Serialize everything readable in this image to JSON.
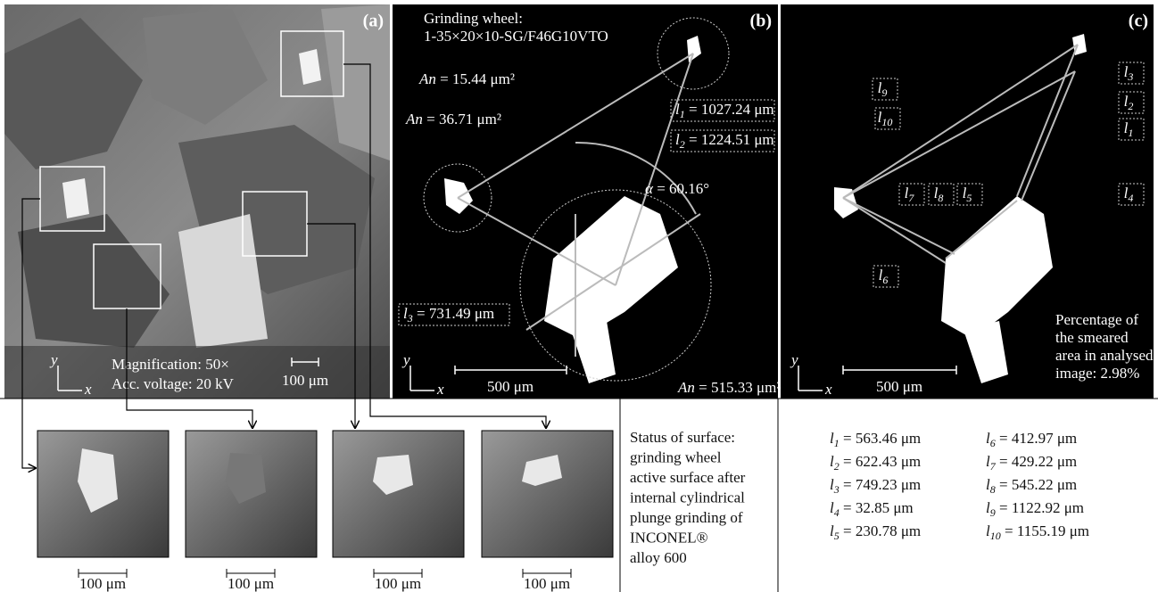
{
  "panel_a": {
    "label": "(a)",
    "magnification": "Magnification: 50×",
    "voltage": "Acc. voltage: 20 kV",
    "scale": "100 μm",
    "axis_y": "y",
    "axis_x": "x"
  },
  "panel_b": {
    "label": "(b)",
    "wheel_title": "Grinding wheel:",
    "wheel_spec": "1-35×20×10-SG/F46G10VTO",
    "areas": [
      {
        "symbol": "An",
        "text": " = 15.44 μm²"
      },
      {
        "symbol": "An",
        "text": " = 36.71 μm²"
      },
      {
        "symbol": "An",
        "text": " = 515.33 μm²"
      }
    ],
    "lengths": [
      {
        "symbol": "l",
        "sub": "1",
        "text": " = 1027.24 μm"
      },
      {
        "symbol": "l",
        "sub": "2",
        "text": " = 1224.51 μm"
      },
      {
        "symbol": "l",
        "sub": "3",
        "text": " = 731.49 μm"
      }
    ],
    "angle": {
      "symbol": "α",
      "text": " = 60.16°"
    },
    "scale": "500 μm",
    "axis_y": "y",
    "axis_x": "x"
  },
  "panel_c": {
    "label": "(c)",
    "markers": [
      {
        "symbol": "l",
        "sub": "1"
      },
      {
        "symbol": "l",
        "sub": "2"
      },
      {
        "symbol": "l",
        "sub": "3"
      },
      {
        "symbol": "l",
        "sub": "4"
      },
      {
        "symbol": "l",
        "sub": "5"
      },
      {
        "symbol": "l",
        "sub": "6"
      },
      {
        "symbol": "l",
        "sub": "7"
      },
      {
        "symbol": "l",
        "sub": "8"
      },
      {
        "symbol": "l",
        "sub": "9"
      },
      {
        "symbol": "l",
        "sub": "10"
      }
    ],
    "note": [
      "Percentage of",
      "the smeared",
      "area in analysed",
      "image: 2.98%"
    ],
    "scale": "500 μm",
    "axis_y": "y",
    "axis_x": "x"
  },
  "thumbnails": {
    "scales": [
      "100 μm",
      "100 μm",
      "100 μm",
      "100 μm"
    ]
  },
  "status": [
    "Status of surface:",
    "grinding wheel",
    "active surface after",
    "internal cylindrical",
    "plunge grinding of",
    "INCONEL®",
    "alloy 600"
  ],
  "measurements": [
    {
      "symbol": "l",
      "sub": "1",
      "text": " = 563.46 μm"
    },
    {
      "symbol": "l",
      "sub": "2",
      "text": " = 622.43 μm"
    },
    {
      "symbol": "l",
      "sub": "3",
      "text": " = 749.23 μm"
    },
    {
      "symbol": "l",
      "sub": "4",
      "text": " = 32.85 μm"
    },
    {
      "symbol": "l",
      "sub": "5",
      "text": " = 230.78 μm"
    },
    {
      "symbol": "l",
      "sub": "6",
      "text": " = 412.97 μm"
    },
    {
      "symbol": "l",
      "sub": "7",
      "text": " = 429.22 μm"
    },
    {
      "symbol": "l",
      "sub": "8",
      "text": " = 545.22 μm"
    },
    {
      "symbol": "l",
      "sub": "9",
      "text": " = 1122.92 μm"
    },
    {
      "symbol": "l",
      "sub": "10",
      "text": " = 1155.19 μm"
    }
  ]
}
